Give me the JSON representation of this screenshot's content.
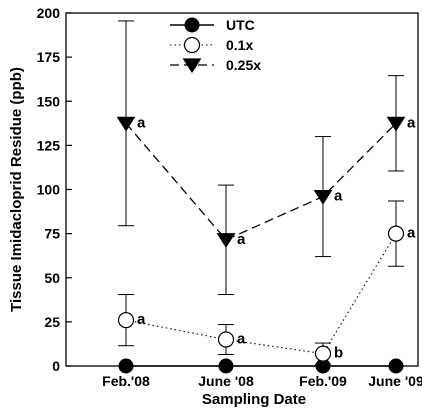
{
  "chart_data": {
    "type": "line",
    "xlabel": "Sampling Date",
    "ylabel": "Tissue Imidacloprid Residue (ppb)",
    "categories": [
      "Feb.'08",
      "June '08",
      "Feb.'09",
      "June '09"
    ],
    "ylim": [
      0,
      200
    ],
    "yticks": [
      0,
      25,
      50,
      75,
      100,
      125,
      150,
      175,
      200
    ],
    "grid": false,
    "legend_position": "top-center",
    "series": [
      {
        "name": "UTC",
        "marker": "filled-circle",
        "line_style": "solid",
        "values": [
          0,
          0,
          0,
          0
        ],
        "errors": [
          0,
          0,
          0,
          0
        ],
        "labels": [
          "",
          "",
          "",
          ""
        ]
      },
      {
        "name": "0.1x",
        "marker": "open-circle",
        "line_style": "dotted",
        "values": [
          26,
          15,
          7,
          75
        ],
        "errors": [
          14.5,
          8.5,
          6,
          18.5
        ],
        "labels": [
          "a",
          "a",
          "b",
          "a"
        ]
      },
      {
        "name": "0.25x",
        "marker": "filled-triangle-down",
        "line_style": "dashed",
        "values": [
          137.5,
          71.5,
          96,
          137.5
        ],
        "errors": [
          58,
          31,
          34,
          27
        ],
        "labels": [
          "a",
          "a",
          "a",
          "a"
        ]
      }
    ]
  }
}
